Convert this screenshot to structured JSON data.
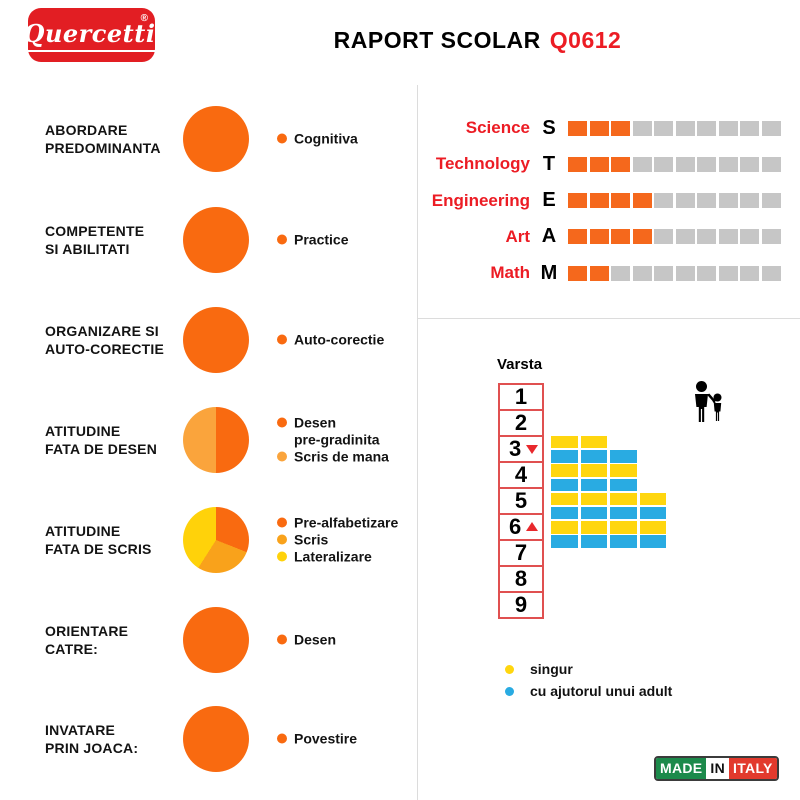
{
  "colors": {
    "orange": "#F96A10",
    "orange_light": "#FAA43C",
    "amber": "#F9A21B",
    "yellow": "#FFD20A",
    "steam_orange": "#F5681C",
    "steam_gray": "#C6C6C6",
    "red": "#EC1C24",
    "box_red": "#E05050",
    "tri_red": "#E8282C",
    "block_yellow": "#FFD60F",
    "block_blue": "#29ABE2",
    "logo_red": "#E21E23",
    "made_green": "#1C8A4B",
    "made_red": "#E23A2D",
    "divider": "#DCDCDC"
  },
  "header": {
    "logo_text": "Quercetti",
    "logo_reg": "®",
    "title": "RAPORT SCOLAR",
    "title_code": "Q0612"
  },
  "categories": [
    {
      "label": "ABORDARE\nPREDOMINANTA",
      "pie": [
        {
          "name": "Cognitiva",
          "color": "orange",
          "pct": 100
        }
      ],
      "legend": [
        {
          "text": "Cognitiva",
          "color": "orange"
        }
      ]
    },
    {
      "label": "COMPETENTE\nSI ABILITATI",
      "pie": [
        {
          "name": "Practice",
          "color": "orange",
          "pct": 100
        }
      ],
      "legend": [
        {
          "text": "Practice",
          "color": "orange"
        }
      ]
    },
    {
      "label": "ORGANIZARE SI\nAUTO-CORECTIE",
      "pie": [
        {
          "name": "Auto-corectie",
          "color": "orange",
          "pct": 100
        }
      ],
      "legend": [
        {
          "text": "Auto-corectie",
          "color": "orange"
        }
      ]
    },
    {
      "label": "ATITUDINE\nFATA DE DESEN",
      "pie": [
        {
          "name": "Desen pre-gradinita",
          "color": "orange",
          "pct": 50
        },
        {
          "name": "Scris de mana",
          "color": "orange_light",
          "pct": 50
        }
      ],
      "legend": [
        {
          "text": "Desen\npre-gradinita",
          "color": "orange"
        },
        {
          "text": "Scris de mana",
          "color": "orange_light"
        }
      ]
    },
    {
      "label": "ATITUDINE\nFATA DE SCRIS",
      "pie": [
        {
          "name": "Pre-alfabetizare",
          "color": "orange",
          "pct": 31
        },
        {
          "name": "Scris",
          "color": "amber",
          "pct": 28
        },
        {
          "name": "Lateralizare",
          "color": "yellow",
          "pct": 41
        }
      ],
      "legend": [
        {
          "text": "Pre-alfabetizare",
          "color": "orange"
        },
        {
          "text": "Scris",
          "color": "amber"
        },
        {
          "text": "Lateralizare",
          "color": "yellow"
        }
      ]
    },
    {
      "label": "ORIENTARE\nCATRE:",
      "pie": [
        {
          "name": "Desen",
          "color": "orange",
          "pct": 100
        }
      ],
      "legend": [
        {
          "text": "Desen",
          "color": "orange"
        }
      ]
    },
    {
      "label": "INVATARE\nPRIN JOACA:",
      "pie": [
        {
          "name": "Povestire",
          "color": "orange",
          "pct": 100
        }
      ],
      "legend": [
        {
          "text": "Povestire",
          "color": "orange"
        }
      ]
    }
  ],
  "steam": {
    "total_squares": 10,
    "rows": [
      {
        "label": "Science",
        "letter": "S",
        "filled": 3
      },
      {
        "label": "Technology",
        "letter": "T",
        "filled": 3
      },
      {
        "label": "Engineering",
        "letter": "E",
        "filled": 4
      },
      {
        "label": "Art",
        "letter": "A",
        "filled": 4
      },
      {
        "label": "Math",
        "letter": "M",
        "filled": 2
      }
    ]
  },
  "age_chart": {
    "title": "Varsta",
    "ages": [
      "1",
      "2",
      "3",
      "4",
      "5",
      "6",
      "7",
      "8",
      "9"
    ],
    "marker_start_age": "3",
    "marker_end_age": "6",
    "bars": [
      {
        "age": "3",
        "singur": 2,
        "adult": 3
      },
      {
        "age": "4",
        "singur": 3,
        "adult": 3
      },
      {
        "age": "5",
        "singur": 4,
        "adult": 4
      },
      {
        "age": "6",
        "singur": 4,
        "adult": 4
      }
    ],
    "legend": [
      {
        "text": "singur",
        "color_key": "block_yellow"
      },
      {
        "text": "cu ajutorul unui adult",
        "color_key": "block_blue"
      }
    ]
  },
  "made_in_italy": {
    "made": "MADE",
    "in": "IN",
    "italy": "ITALY"
  },
  "chart_data": [
    {
      "type": "pie",
      "title": "ABORDARE PREDOMINANTA",
      "labels": [
        "Cognitiva"
      ],
      "values": [
        100
      ]
    },
    {
      "type": "pie",
      "title": "COMPETENTE SI ABILITATI",
      "labels": [
        "Practice"
      ],
      "values": [
        100
      ]
    },
    {
      "type": "pie",
      "title": "ORGANIZARE SI AUTO-CORECTIE",
      "labels": [
        "Auto-corectie"
      ],
      "values": [
        100
      ]
    },
    {
      "type": "pie",
      "title": "ATITUDINE FATA DE DESEN",
      "labels": [
        "Desen pre-gradinita",
        "Scris de mana"
      ],
      "values": [
        50,
        50
      ]
    },
    {
      "type": "pie",
      "title": "ATITUDINE FATA DE SCRIS",
      "labels": [
        "Pre-alfabetizare",
        "Scris",
        "Lateralizare"
      ],
      "values": [
        31,
        28,
        41
      ]
    },
    {
      "type": "pie",
      "title": "ORIENTARE CATRE:",
      "labels": [
        "Desen"
      ],
      "values": [
        100
      ]
    },
    {
      "type": "pie",
      "title": "INVATARE PRIN JOACA:",
      "labels": [
        "Povestire"
      ],
      "values": [
        100
      ]
    },
    {
      "type": "bar",
      "title": "STEAM rating (filled squares of 10)",
      "categories": [
        "Science",
        "Technology",
        "Engineering",
        "Art",
        "Math"
      ],
      "values": [
        3,
        3,
        4,
        4,
        2
      ],
      "ylim": [
        0,
        10
      ]
    },
    {
      "type": "bar",
      "title": "Varsta (age suitability 3-6)",
      "categories": [
        "3",
        "4",
        "5",
        "6"
      ],
      "series": [
        {
          "name": "singur",
          "values": [
            2,
            3,
            4,
            4
          ]
        },
        {
          "name": "cu ajutorul unui adult",
          "values": [
            3,
            3,
            4,
            4
          ]
        }
      ],
      "age_range": [
        3,
        6
      ]
    }
  ]
}
